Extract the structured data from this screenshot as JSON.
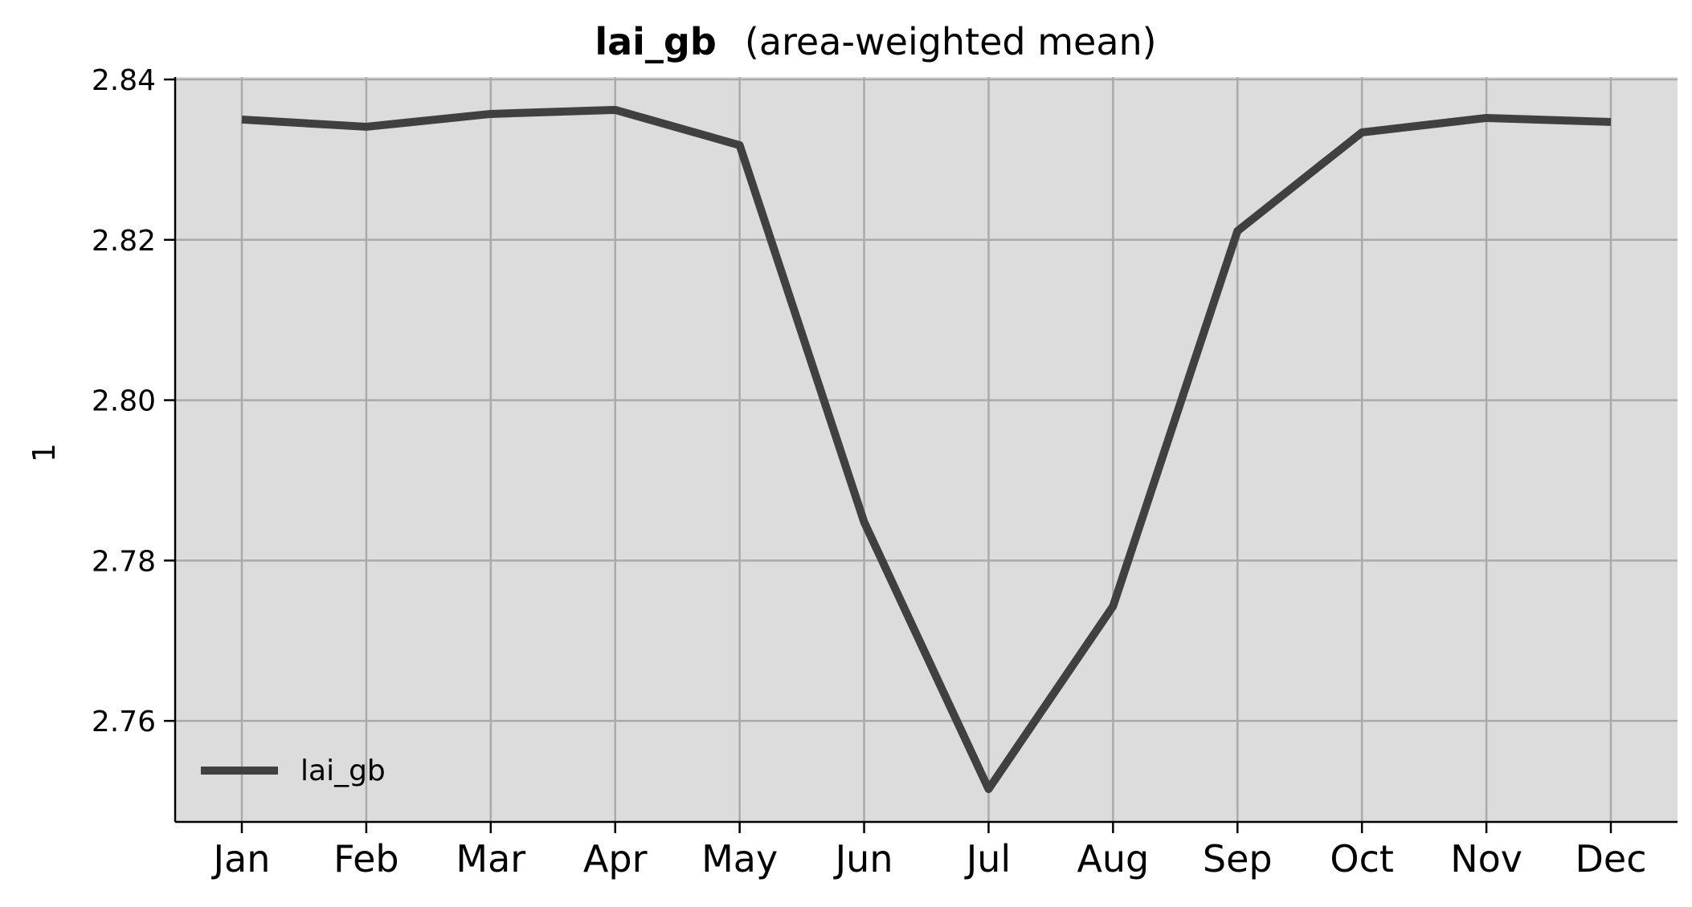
{
  "chart_data": {
    "type": "line",
    "title": "lai_gb",
    "subtitle": "(area-weighted mean)",
    "xlabel": "",
    "ylabel": "1",
    "categories": [
      "Jan",
      "Feb",
      "Mar",
      "Apr",
      "May",
      "Jun",
      "Jul",
      "Aug",
      "Sep",
      "Oct",
      "Nov",
      "Dec"
    ],
    "series": [
      {
        "name": "lai_gb",
        "color": "#404040",
        "values": [
          2.835,
          2.8341,
          2.8357,
          2.8362,
          2.8318,
          2.7848,
          2.7515,
          2.7743,
          2.8211,
          2.8334,
          2.8352,
          2.8347
        ]
      }
    ],
    "ylim": [
      2.7474,
      2.8403
    ],
    "yticks": [
      2.76,
      2.78,
      2.8,
      2.82,
      2.84
    ],
    "ytick_labels": [
      "2.76",
      "2.78",
      "2.80",
      "2.82",
      "2.84"
    ],
    "grid": true,
    "legend_location": "lower-left",
    "colors": {
      "plot_background": "#dcdcdc",
      "grid": "#aaaaaa",
      "line": "#404040"
    }
  }
}
